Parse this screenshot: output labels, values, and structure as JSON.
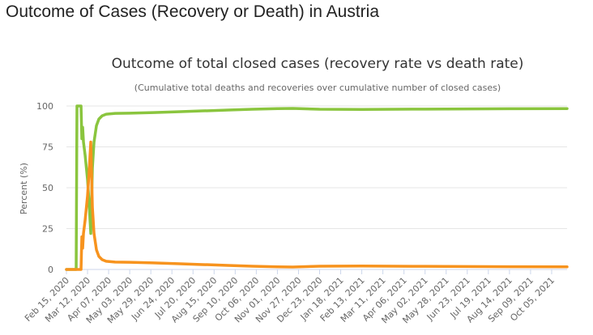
{
  "page": {
    "heading": "Outcome of Cases (Recovery or Death) in Austria"
  },
  "chart_data": {
    "type": "line",
    "title": "Outcome of total closed cases (recovery rate vs death rate)",
    "subtitle": "(Cumulative total deaths and recoveries over cumulative number of closed cases)",
    "xlabel": "",
    "ylabel": "Percent (%)",
    "ylim": [
      0,
      100
    ],
    "yticks": [
      0,
      25,
      50,
      75,
      100
    ],
    "grid": true,
    "legend": "none",
    "x_start": "2020-02-15",
    "x_end": "2021-10-24",
    "xtick_labels": [
      "Feb 15, 2020",
      "Mar 12, 2020",
      "Apr 07, 2020",
      "May 03, 2020",
      "May 29, 2020",
      "Jun 24, 2020",
      "Jul 20, 2020",
      "Aug 15, 2020",
      "Sep 10, 2020",
      "Oct 06, 2020",
      "Nov 01, 2020",
      "Nov 27, 2020",
      "Dec 23, 2020",
      "Jan 18, 2021",
      "Feb 13, 2021",
      "Mar 11, 2021",
      "Apr 06, 2021",
      "May 02, 2021",
      "May 28, 2021",
      "Jun 23, 2021",
      "Jul 19, 2021",
      "Aug 14, 2021",
      "Sep 09, 2021",
      "Oct 05, 2021"
    ],
    "series": [
      {
        "color": "#8ac53e",
        "points": [
          [
            "2020-02-15",
            0
          ],
          [
            "2020-02-25",
            0
          ],
          [
            "2020-02-27",
            0
          ],
          [
            "2020-02-28",
            100
          ],
          [
            "2020-03-04",
            100
          ],
          [
            "2020-03-05",
            80
          ],
          [
            "2020-03-06",
            87
          ],
          [
            "2020-03-07",
            78
          ],
          [
            "2020-03-09",
            70
          ],
          [
            "2020-03-12",
            55
          ],
          [
            "2020-03-14",
            40
          ],
          [
            "2020-03-16",
            22
          ],
          [
            "2020-03-18",
            62
          ],
          [
            "2020-03-20",
            78
          ],
          [
            "2020-03-23",
            88
          ],
          [
            "2020-03-26",
            92
          ],
          [
            "2020-03-30",
            94
          ],
          [
            "2020-04-04",
            95
          ],
          [
            "2020-04-15",
            95.5
          ],
          [
            "2020-05-03",
            95.6
          ],
          [
            "2020-06-01",
            96
          ],
          [
            "2020-07-01",
            96.5
          ],
          [
            "2020-08-01",
            97
          ],
          [
            "2020-09-01",
            97.5
          ],
          [
            "2020-10-01",
            98
          ],
          [
            "2020-11-01",
            98.4
          ],
          [
            "2020-11-20",
            98.5
          ],
          [
            "2020-12-23",
            98
          ],
          [
            "2021-02-13",
            97.9
          ],
          [
            "2021-05-02",
            98.1
          ],
          [
            "2021-08-14",
            98.3
          ],
          [
            "2021-10-24",
            98.4
          ]
        ]
      },
      {
        "color": "#f7931e",
        "points": [
          [
            "2020-02-15",
            0
          ],
          [
            "2020-03-04",
            0
          ],
          [
            "2020-03-05",
            20
          ],
          [
            "2020-03-06",
            13
          ],
          [
            "2020-03-07",
            22
          ],
          [
            "2020-03-09",
            30
          ],
          [
            "2020-03-12",
            45
          ],
          [
            "2020-03-14",
            60
          ],
          [
            "2020-03-16",
            78
          ],
          [
            "2020-03-18",
            38
          ],
          [
            "2020-03-20",
            22
          ],
          [
            "2020-03-23",
            12
          ],
          [
            "2020-03-26",
            8
          ],
          [
            "2020-03-30",
            6
          ],
          [
            "2020-04-04",
            5
          ],
          [
            "2020-04-15",
            4.5
          ],
          [
            "2020-05-03",
            4.4
          ],
          [
            "2020-06-01",
            4
          ],
          [
            "2020-07-01",
            3.5
          ],
          [
            "2020-08-01",
            3
          ],
          [
            "2020-09-01",
            2.5
          ],
          [
            "2020-10-01",
            2
          ],
          [
            "2020-11-01",
            1.6
          ],
          [
            "2020-11-20",
            1.5
          ],
          [
            "2020-12-23",
            2
          ],
          [
            "2021-02-13",
            2.1
          ],
          [
            "2021-05-02",
            1.9
          ],
          [
            "2021-08-14",
            1.7
          ],
          [
            "2021-10-24",
            1.6
          ]
        ]
      }
    ]
  }
}
